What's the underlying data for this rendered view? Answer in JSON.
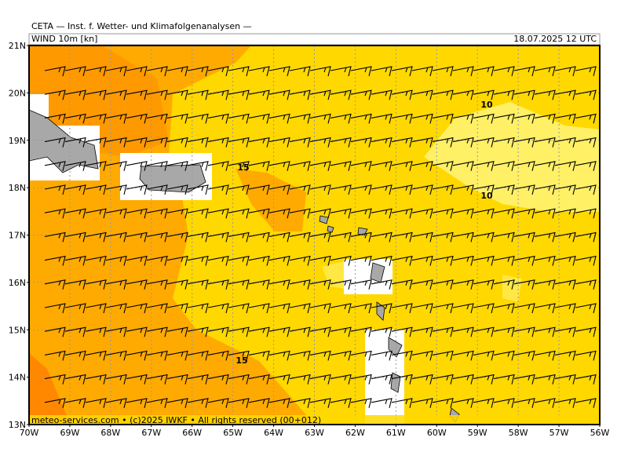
{
  "header": {
    "title": "CETA — Inst. f. Wetter- und Klimafolgenanalysen —",
    "field": "WIND 10m [kn]",
    "valid": "18.07.2025 12 UTC"
  },
  "footer": "meteo-services.com • (c)2025 IWKF • All rights reserved (00+012)",
  "lat_labels": [
    "21N",
    "20N",
    "19N",
    "18N",
    "17N",
    "16N",
    "15N",
    "14N",
    "13N"
  ],
  "lon_labels": [
    "70W",
    "69W",
    "68W",
    "67W",
    "66W",
    "65W",
    "64W",
    "63W",
    "62W",
    "61W",
    "60W",
    "59W",
    "58W",
    "57W",
    "56W"
  ],
  "contour_labels": [
    "10",
    "10",
    "15",
    "15"
  ]
}
